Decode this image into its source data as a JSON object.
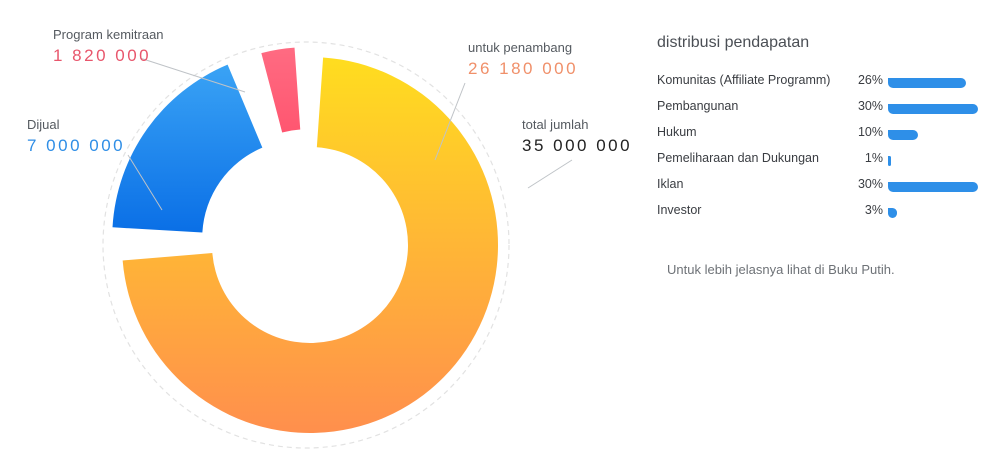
{
  "chart_data": {
    "type": "pie",
    "donut": true,
    "slices": [
      {
        "label": "untuk penambang",
        "value": "26 180 000",
        "color_start": "#ffdd1f",
        "color_end": "#ff8f4d",
        "label_color": "#f0906a"
      },
      {
        "label": "Dijual",
        "value": "7 000 000",
        "color_start": "#3aa3f5",
        "color_end": "#0a6fe6",
        "label_color": "#2f8ee6"
      },
      {
        "label": "Program kemitraan",
        "value": "1 820 000",
        "color_start": "#ff6b82",
        "color_end": "#ff5670",
        "label_color": "#e8566c"
      }
    ],
    "values": [
      26180000,
      7000000,
      1820000
    ],
    "total": {
      "label": "total jumlah",
      "value": "35 000 000",
      "color": "#222222"
    }
  },
  "panel": {
    "title": "distribusi pendapatan",
    "bar_color": "#2e8fe8",
    "rows": [
      {
        "name": "Komunitas (Affiliate Programm)",
        "pct_label": "26%",
        "pct": 26
      },
      {
        "name": "Pembangunan",
        "pct_label": "30%",
        "pct": 30
      },
      {
        "name": "Hukum",
        "pct_label": "10%",
        "pct": 10
      },
      {
        "name": "Pemeliharaan dan Dukungan",
        "pct_label": "1%",
        "pct": 1
      },
      {
        "name": "Iklan",
        "pct_label": "30%",
        "pct": 30
      },
      {
        "name": "Investor",
        "pct_label": "3%",
        "pct": 3
      }
    ],
    "note": "Untuk lebih jelasnya lihat di Buku Putih."
  }
}
